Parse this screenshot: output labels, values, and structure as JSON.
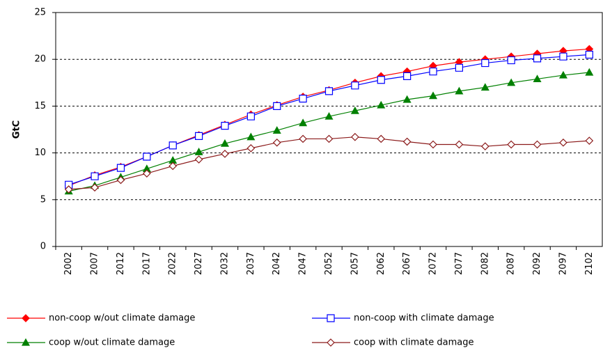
{
  "chart_data": {
    "type": "line",
    "y_label": "GtC",
    "categories": [
      "2002",
      "2007",
      "2012",
      "2017",
      "2022",
      "2027",
      "2032",
      "2037",
      "2042",
      "2047",
      "2052",
      "2057",
      "2062",
      "2067",
      "2072",
      "2077",
      "2082",
      "2087",
      "2092",
      "2097",
      "2102"
    ],
    "series": [
      {
        "name": "non-coop w/out climate damage",
        "color": "#ff0000",
        "marker": "diamond-filled",
        "values": [
          6.5,
          7.6,
          8.5,
          9.6,
          10.8,
          11.9,
          13.0,
          14.1,
          15.1,
          16.0,
          16.7,
          17.5,
          18.2,
          18.7,
          19.3,
          19.7,
          20.0,
          20.3,
          20.6,
          20.9,
          21.1
        ]
      },
      {
        "name": "non-coop with climate damage",
        "color": "#0000ff",
        "marker": "square-open",
        "values": [
          6.6,
          7.5,
          8.4,
          9.6,
          10.8,
          11.8,
          12.9,
          13.9,
          15.0,
          15.8,
          16.6,
          17.2,
          17.8,
          18.2,
          18.7,
          19.1,
          19.6,
          19.9,
          20.1,
          20.3,
          20.5
        ]
      },
      {
        "name": "coop w/out climate damage",
        "color": "#008000",
        "marker": "triangle-filled",
        "values": [
          5.9,
          6.5,
          7.4,
          8.3,
          9.2,
          10.1,
          11.0,
          11.7,
          12.4,
          13.2,
          13.9,
          14.5,
          15.1,
          15.7,
          16.1,
          16.6,
          17.0,
          17.5,
          17.9,
          18.3,
          18.6
        ]
      },
      {
        "name": "coop with climate damage",
        "color": "#8b1a1a",
        "marker": "diamond-open",
        "values": [
          6.1,
          6.3,
          7.1,
          7.8,
          8.6,
          9.3,
          9.9,
          10.5,
          11.1,
          11.5,
          11.5,
          11.7,
          11.5,
          11.2,
          10.9,
          10.9,
          10.7,
          10.9,
          10.9,
          11.1,
          11.3
        ]
      }
    ],
    "ylim": [
      0,
      25
    ],
    "yticks": [
      0,
      5,
      10,
      15,
      20,
      25
    ],
    "grid": true
  }
}
